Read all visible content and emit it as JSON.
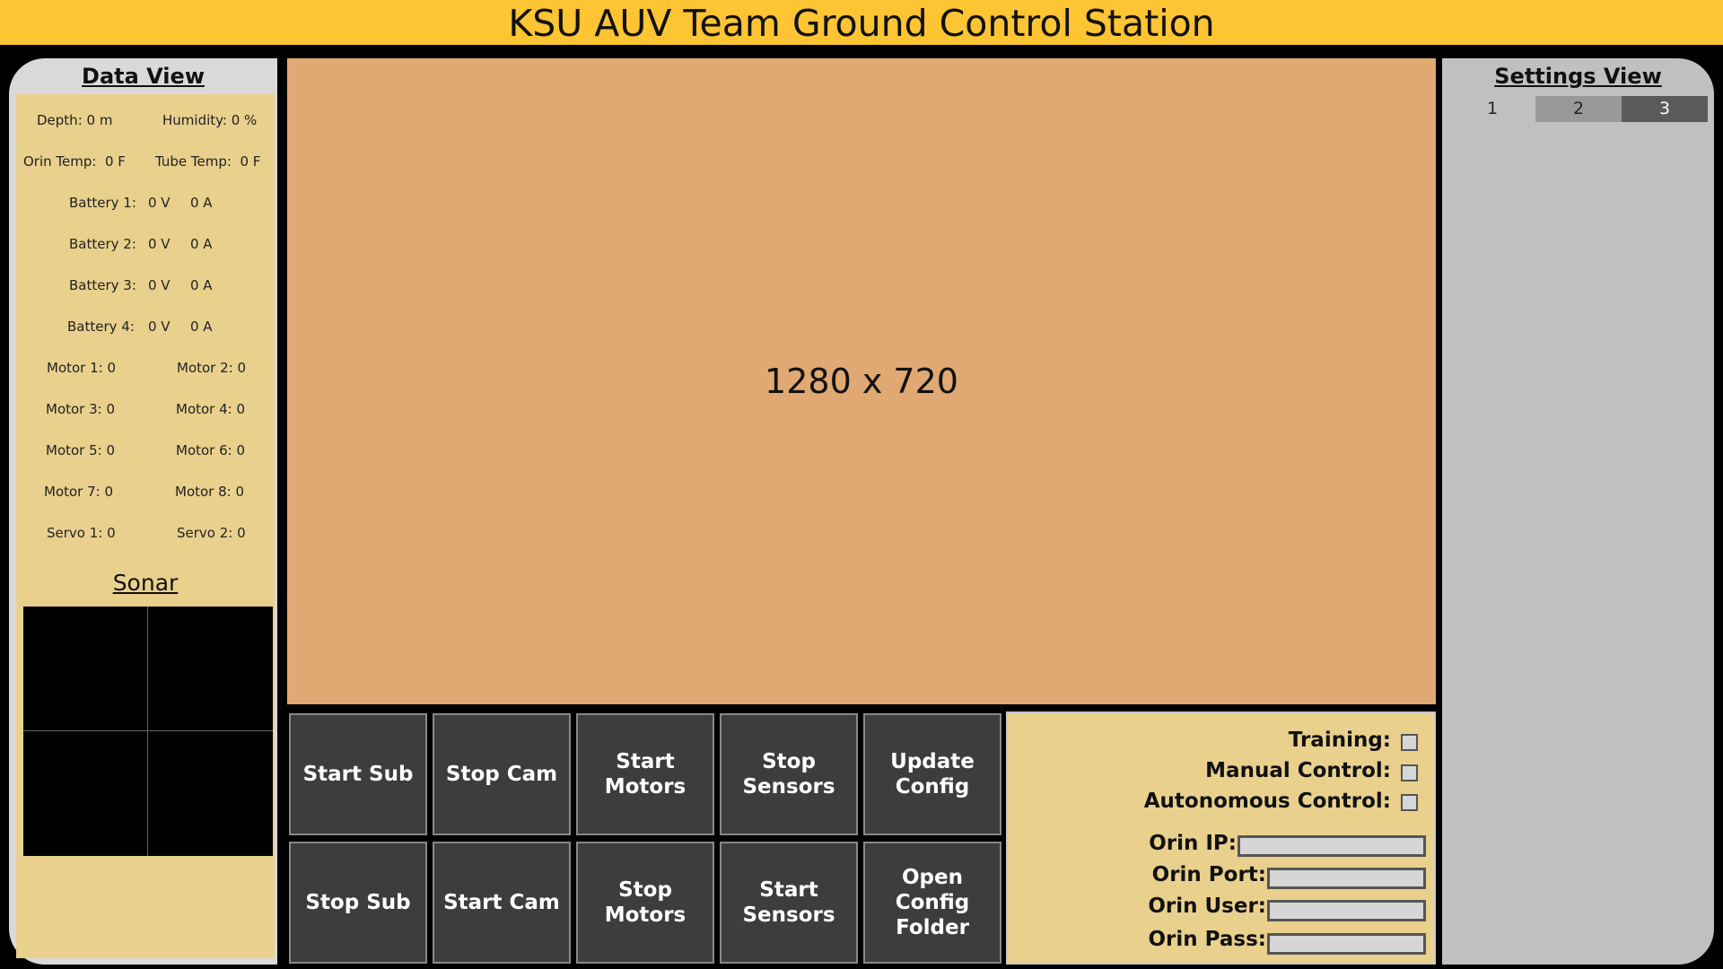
{
  "header": {
    "title": "KSU AUV Team Ground Control Station"
  },
  "data_view": {
    "title": "Data View",
    "depth": "Depth: 0 m",
    "humidity": "Humidity: 0 %",
    "orin_temp": "Orin Temp:  0 F",
    "tube_temp": "Tube Temp:  0 F",
    "batteries": [
      {
        "label": "Battery 1:",
        "voltage": "0 V",
        "current": "0 A"
      },
      {
        "label": "Battery 2:",
        "voltage": "0 V",
        "current": "0 A"
      },
      {
        "label": "Battery 3:",
        "voltage": "0 V",
        "current": "0 A"
      },
      {
        "label": "Battery 4:",
        "voltage": "0 V",
        "current": "0 A"
      }
    ],
    "motors": [
      "Motor 1: 0",
      "Motor 2: 0",
      "Motor 3: 0",
      "Motor 4: 0",
      "Motor 5: 0",
      "Motor 6: 0",
      "Motor 7: 0",
      "Motor 8: 0"
    ],
    "servos": [
      "Servo 1: 0",
      "Servo 2: 0"
    ],
    "sonar_title": "Sonar"
  },
  "video": {
    "placeholder": "1280 x 720"
  },
  "buttons": {
    "start_sub": "Start Sub",
    "stop_cam": "Stop Cam",
    "start_motors": "Start Motors",
    "stop_sensors": "Stop Sensors",
    "update_config": "Update Config",
    "stop_sub": "Stop Sub",
    "start_cam": "Start Cam",
    "stop_motors": "Stop Motors",
    "start_sensors": "Start Sensors",
    "open_config_folder": "Open Config Folder"
  },
  "controls": {
    "training": "Training:",
    "manual_control": "Manual Control:",
    "autonomous_control": "Autonomous Control:",
    "orin_ip": "Orin IP:",
    "orin_port": "Orin Port:",
    "orin_user": "Orin User:",
    "orin_pass": "Orin Pass:"
  },
  "settings_view": {
    "title": "Settings View",
    "tabs": [
      "1",
      "2",
      "3"
    ]
  },
  "colors": {
    "header": "#fdc433",
    "panel_fill": "#e9d08d",
    "video_bg": "#e0a872",
    "button_bg": "#3d3d3d"
  }
}
